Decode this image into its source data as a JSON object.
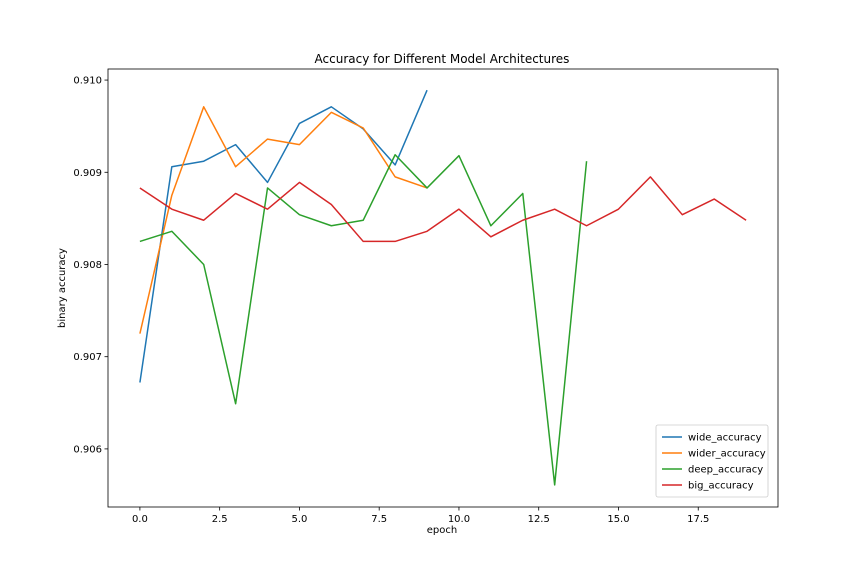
{
  "chart_data": {
    "type": "line",
    "title": "Accuracy for Different Model Architectures",
    "xlabel": "epoch",
    "ylabel": "binary accuracy",
    "xlim": [
      -1.0,
      20.0
    ],
    "ylim": [
      0.90537,
      0.91012
    ],
    "xticks": [
      0.0,
      2.5,
      5.0,
      7.5,
      10.0,
      12.5,
      15.0,
      17.5
    ],
    "xtick_labels": [
      "0.0",
      "2.5",
      "5.0",
      "7.5",
      "10.0",
      "12.5",
      "15.0",
      "17.5"
    ],
    "yticks": [
      0.906,
      0.907,
      0.908,
      0.909,
      0.91
    ],
    "ytick_labels": [
      "0.906",
      "0.907",
      "0.908",
      "0.909",
      "0.910"
    ],
    "grid": false,
    "legend_position": "lower-right",
    "series": [
      {
        "name": "wide_accuracy",
        "color": "#1f77b4",
        "x": [
          0,
          1,
          2,
          3,
          4,
          5,
          6,
          7,
          8,
          9
        ],
        "values": [
          0.90672,
          0.90906,
          0.90912,
          0.9093,
          0.90889,
          0.90953,
          0.90971,
          0.90947,
          0.90908,
          0.90989
        ]
      },
      {
        "name": "wider_accuracy",
        "color": "#ff7f0e",
        "x": [
          0,
          1,
          2,
          3,
          4,
          5,
          6,
          7,
          8,
          9
        ],
        "values": [
          0.90725,
          0.90875,
          0.90971,
          0.90906,
          0.90936,
          0.9093,
          0.90965,
          0.90948,
          0.90895,
          0.90883
        ]
      },
      {
        "name": "deep_accuracy",
        "color": "#2ca02c",
        "x": [
          0,
          1,
          2,
          3,
          4,
          5,
          6,
          7,
          8,
          9,
          10,
          11,
          12,
          13,
          14
        ],
        "values": [
          0.90825,
          0.90836,
          0.908,
          0.90649,
          0.90883,
          0.90854,
          0.90842,
          0.90848,
          0.90919,
          0.90883,
          0.90918,
          0.90842,
          0.90877,
          0.90561,
          0.90912
        ]
      },
      {
        "name": "big_accuracy",
        "color": "#d62728",
        "x": [
          0,
          1,
          2,
          3,
          4,
          5,
          6,
          7,
          8,
          9,
          10,
          11,
          12,
          13,
          14,
          15,
          16,
          17,
          18,
          19
        ],
        "values": [
          0.90883,
          0.9086,
          0.90848,
          0.90877,
          0.9086,
          0.90889,
          0.90865,
          0.90825,
          0.90825,
          0.90836,
          0.9086,
          0.9083,
          0.90848,
          0.9086,
          0.90842,
          0.9086,
          0.90895,
          0.90854,
          0.90871,
          0.90848
        ]
      }
    ]
  }
}
